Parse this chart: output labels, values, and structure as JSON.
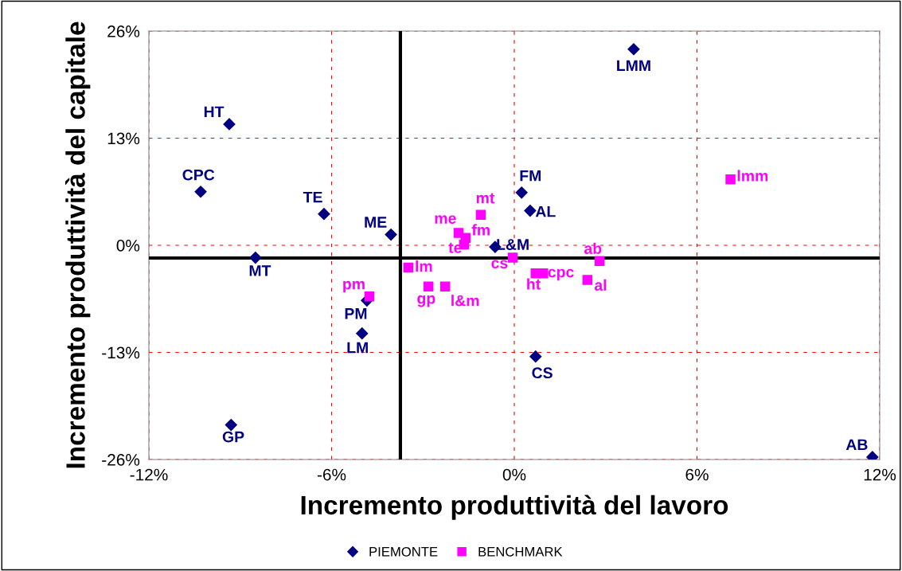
{
  "chart_data": {
    "type": "scatter",
    "xlabel": "Incremento produttività del lavoro",
    "ylabel": "Incremento produttività del capitale",
    "series": [
      {
        "name": "PIEMONTE",
        "color": "#000080",
        "marker": "diamond",
        "x": [
          3.92,
          -9.36,
          -10.3,
          -6.25,
          -4.05,
          -8.5,
          0.24,
          0.52,
          -0.63,
          -4.84,
          -5.0,
          0.7,
          -9.3,
          11.76
        ],
        "values": [
          23.8,
          14.7,
          6.5,
          3.8,
          1.3,
          -1.5,
          6.4,
          4.2,
          -0.2,
          -6.7,
          -10.7,
          -13.5,
          -21.8,
          -25.7
        ]
      },
      {
        "name": "BENCHMARK",
        "color": "#ff00ff",
        "marker": "square",
        "x": [
          7.1,
          -1.1,
          -1.83,
          -1.6,
          -1.65,
          -0.05,
          -3.48,
          2.8,
          0.7,
          0.95,
          2.4,
          -2.82,
          -2.27,
          -4.76
        ],
        "values": [
          8.0,
          3.7,
          1.5,
          0.9,
          0.1,
          -1.5,
          -2.7,
          -1.9,
          -3.4,
          -3.4,
          -4.2,
          -5.0,
          -5.0,
          -6.2
        ]
      }
    ],
    "annotations": [
      {
        "text": "LMM",
        "x": 3.92,
        "y": 23.8
      },
      {
        "text": "HT",
        "x": -9.36,
        "y": 14.7
      },
      {
        "text": "CPC",
        "x": -10.3,
        "y": 6.5
      },
      {
        "text": "TE",
        "x": -6.25,
        "y": 3.8
      },
      {
        "text": "ME",
        "x": -4.05,
        "y": 1.3
      },
      {
        "text": "MT",
        "x": -8.5,
        "y": -1.5
      },
      {
        "text": "FM",
        "x": 0.24,
        "y": 6.4
      },
      {
        "text": "AL",
        "x": 0.52,
        "y": 4.2
      },
      {
        "text": "L&M",
        "x": -0.63,
        "y": -0.2
      },
      {
        "text": "PM",
        "x": -4.84,
        "y": -6.7
      },
      {
        "text": "LM",
        "x": -5.0,
        "y": -10.7
      },
      {
        "text": "CS",
        "x": 0.7,
        "y": -13.5
      },
      {
        "text": "GP",
        "x": -9.3,
        "y": -21.8
      },
      {
        "text": "AB",
        "x": 11.76,
        "y": -25.7
      },
      {
        "text": "lmm",
        "x": 7.1,
        "y": 8.0
      },
      {
        "text": "mt",
        "x": -1.1,
        "y": 3.7
      },
      {
        "text": "me",
        "x": -1.83,
        "y": 1.5
      },
      {
        "text": "fm",
        "x": -1.6,
        "y": 0.9
      },
      {
        "text": "te",
        "x": -1.65,
        "y": 0.1
      },
      {
        "text": "cs",
        "x": -0.05,
        "y": -1.5
      },
      {
        "text": "lm",
        "x": -3.48,
        "y": -2.7
      },
      {
        "text": "ab",
        "x": 2.8,
        "y": -1.9
      },
      {
        "text": "ht",
        "x": 0.7,
        "y": -3.4
      },
      {
        "text": "cpc",
        "x": 0.95,
        "y": -3.4
      },
      {
        "text": "al",
        "x": 2.4,
        "y": -4.2
      },
      {
        "text": "gp",
        "x": -2.82,
        "y": -5.0
      },
      {
        "text": "l&m",
        "x": -2.27,
        "y": -5.0
      },
      {
        "text": "pm",
        "x": -4.76,
        "y": -6.2
      }
    ],
    "ref_lines": [
      {
        "axis": "x",
        "value": -3.74,
        "color": "#000000"
      },
      {
        "axis": "y",
        "value": -1.55,
        "color": "#000000"
      }
    ],
    "xlim": [
      -12,
      12
    ],
    "xticks": [
      {
        "value": -12,
        "label": "-12%"
      },
      {
        "value": -6,
        "label": "-6%"
      },
      {
        "value": 0,
        "label": "0%"
      },
      {
        "value": 6,
        "label": "6%"
      },
      {
        "value": 12,
        "label": "12%"
      }
    ],
    "ylim": [
      -26,
      26
    ],
    "yticks": [
      {
        "value": -26,
        "label": "-26%"
      },
      {
        "value": -13,
        "label": "-13%"
      },
      {
        "value": 0,
        "label": "0%"
      },
      {
        "value": 13,
        "label": "13%"
      },
      {
        "value": 26,
        "label": "26%"
      }
    ],
    "grid": true,
    "legend": "bottom"
  }
}
